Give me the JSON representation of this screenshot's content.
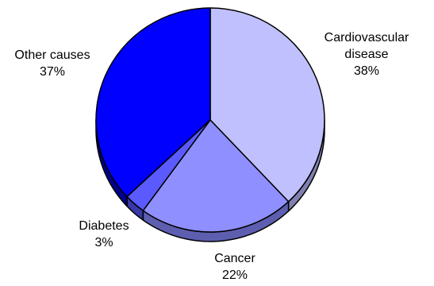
{
  "chart_data": {
    "type": "pie",
    "style": "3d-tilted",
    "start_angle_deg": 90,
    "direction": "clockwise",
    "slices": [
      {
        "label": "Cardiovascular disease",
        "label_lines": [
          "Cardiovascular",
          "disease"
        ],
        "value": 38,
        "value_text": "38%",
        "color": "#c0c0ff",
        "side_color": "#8080b0"
      },
      {
        "label": "Cancer",
        "label_lines": [
          "Cancer"
        ],
        "value": 22,
        "value_text": "22%",
        "color": "#8f8fff",
        "side_color": "#5e5eb0"
      },
      {
        "label": "Diabetes",
        "label_lines": [
          "Diabetes"
        ],
        "value": 3,
        "value_text": "3%",
        "color": "#5a5aff",
        "side_color": "#3838a8"
      },
      {
        "label": "Other causes",
        "label_lines": [
          "Other causes"
        ],
        "value": 37,
        "value_text": "37%",
        "color": "#0000ff",
        "side_color": "#00008c"
      }
    ],
    "unit": "%",
    "legend": "none",
    "outline_color": "#000000"
  }
}
